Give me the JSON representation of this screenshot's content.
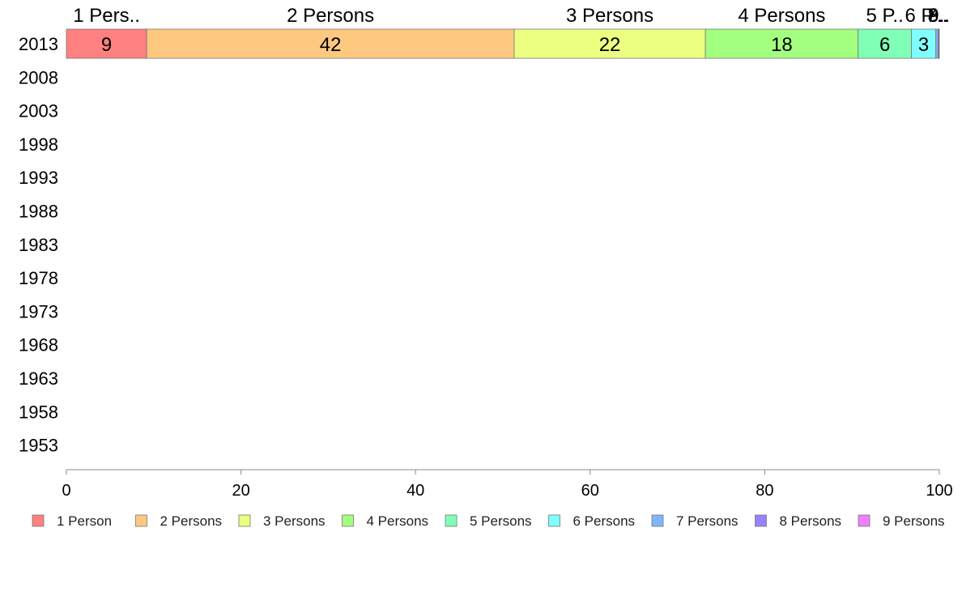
{
  "chart_data": {
    "type": "bar",
    "orientation": "horizontal",
    "stacked": true,
    "categories": [
      "2013",
      "2008",
      "2003",
      "1998",
      "1993",
      "1988",
      "1983",
      "1978",
      "1973",
      "1968",
      "1963",
      "1958",
      "1953"
    ],
    "series": [
      {
        "name": "1 Person",
        "short_label": "1 Pers..",
        "color": "#ff8080",
        "values": [
          9.2,
          null,
          null,
          null,
          null,
          null,
          null,
          null,
          null,
          null,
          null,
          null,
          null
        ],
        "value_label": "9"
      },
      {
        "name": "2 Persons",
        "short_label": "2 Persons",
        "color": "#ffc880",
        "values": [
          42.1,
          null,
          null,
          null,
          null,
          null,
          null,
          null,
          null,
          null,
          null,
          null,
          null
        ],
        "value_label": "42"
      },
      {
        "name": "3 Persons",
        "short_label": "3 Persons",
        "color": "#ecff80",
        "values": [
          21.9,
          null,
          null,
          null,
          null,
          null,
          null,
          null,
          null,
          null,
          null,
          null,
          null
        ],
        "value_label": "22"
      },
      {
        "name": "4 Persons",
        "short_label": "4 Persons",
        "color": "#a3ff80",
        "values": [
          17.5,
          null,
          null,
          null,
          null,
          null,
          null,
          null,
          null,
          null,
          null,
          null,
          null
        ],
        "value_label": "18"
      },
      {
        "name": "5 Persons",
        "short_label": "5 P..",
        "color": "#80ffb6",
        "values": [
          6.1,
          null,
          null,
          null,
          null,
          null,
          null,
          null,
          null,
          null,
          null,
          null,
          null
        ],
        "value_label": "6"
      },
      {
        "name": "6 Persons",
        "short_label": "6 P..",
        "color": "#80ffff",
        "values": [
          2.8,
          null,
          null,
          null,
          null,
          null,
          null,
          null,
          null,
          null,
          null,
          null,
          null
        ],
        "value_label": "3"
      },
      {
        "name": "7 Persons",
        "short_label": "7..",
        "color": "#80b6ff",
        "values": [
          0.25,
          null,
          null,
          null,
          null,
          null,
          null,
          null,
          null,
          null,
          null,
          null,
          null
        ],
        "value_label": ""
      },
      {
        "name": "8 Persons",
        "short_label": "8..",
        "color": "#9b80ff",
        "values": [
          0.1,
          null,
          null,
          null,
          null,
          null,
          null,
          null,
          null,
          null,
          null,
          null,
          null
        ],
        "value_label": ""
      },
      {
        "name": "9 Persons",
        "short_label": "9..",
        "color": "#ee80ff",
        "values": [
          0.05,
          null,
          null,
          null,
          null,
          null,
          null,
          null,
          null,
          null,
          null,
          null,
          null
        ],
        "value_label": ""
      }
    ],
    "xlim": [
      0,
      100
    ],
    "xticks": [
      0,
      20,
      40,
      60,
      80,
      100
    ],
    "title": "",
    "xlabel": "",
    "ylabel": "",
    "grid": false,
    "legend_position": "bottom"
  }
}
